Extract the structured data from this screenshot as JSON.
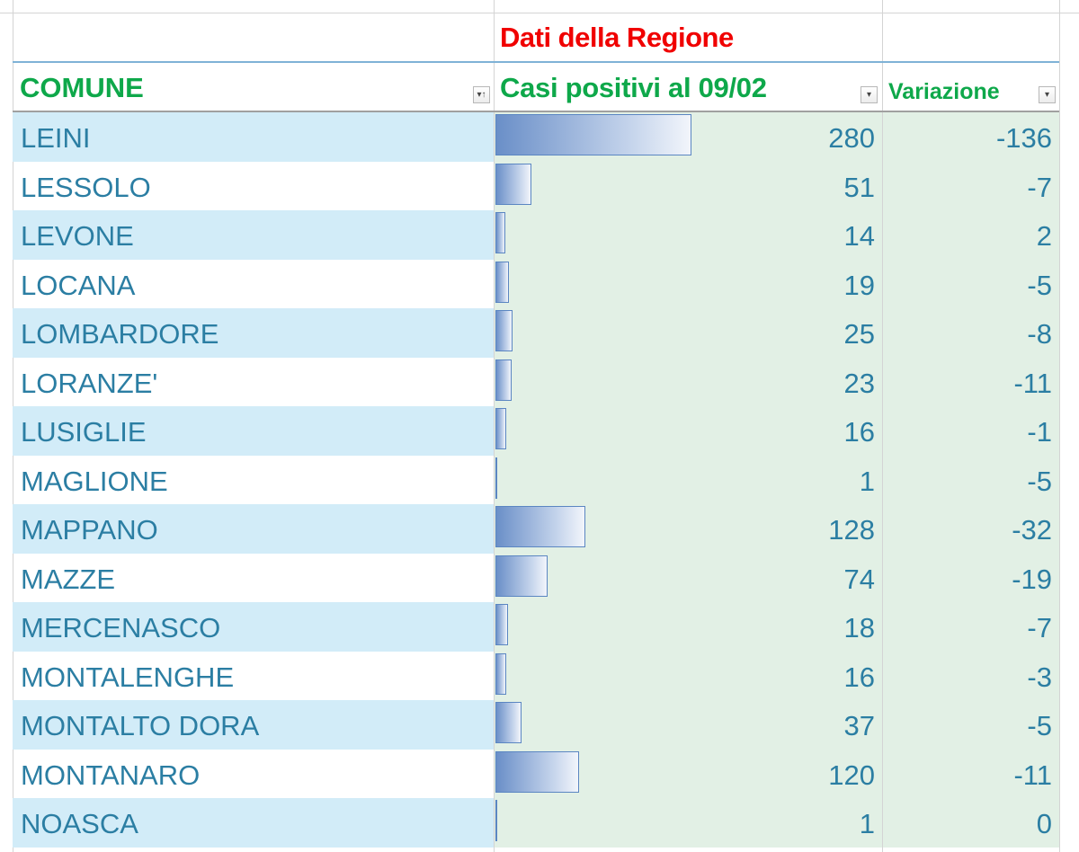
{
  "sheet": {
    "group_title": "Dati della Regione",
    "columns": [
      {
        "label": "COMUNE",
        "filter_icon": "sort-filter-icon"
      },
      {
        "label": "Casi positivi al 09/02",
        "filter_icon": "filter-dropdown-icon"
      },
      {
        "label": "Variazione",
        "filter_icon": "filter-dropdown-icon"
      }
    ],
    "data_bar_max": 280,
    "colors": {
      "title": "#f00000",
      "header": "#0ea84a",
      "text": "#2b7ea3",
      "band_blue": "#d2ecf8",
      "band_green": "#e2f0e5",
      "data_bar": "#5b86c2"
    },
    "rows": [
      {
        "comune": "LEINI",
        "casi": 280,
        "variazione": -136
      },
      {
        "comune": "LESSOLO",
        "casi": 51,
        "variazione": -7
      },
      {
        "comune": "LEVONE",
        "casi": 14,
        "variazione": 2
      },
      {
        "comune": "LOCANA",
        "casi": 19,
        "variazione": -5
      },
      {
        "comune": "LOMBARDORE",
        "casi": 25,
        "variazione": -8
      },
      {
        "comune": "LORANZE'",
        "casi": 23,
        "variazione": -11
      },
      {
        "comune": "LUSIGLIE",
        "casi": 16,
        "variazione": -1
      },
      {
        "comune": "MAGLIONE",
        "casi": 1,
        "variazione": -5
      },
      {
        "comune": "MAPPANO",
        "casi": 128,
        "variazione": -32
      },
      {
        "comune": "MAZZE",
        "casi": 74,
        "variazione": -19
      },
      {
        "comune": "MERCENASCO",
        "casi": 18,
        "variazione": -7
      },
      {
        "comune": "MONTALENGHE",
        "casi": 16,
        "variazione": -3
      },
      {
        "comune": "MONTALTO DORA",
        "casi": 37,
        "variazione": -5
      },
      {
        "comune": "MONTANARO",
        "casi": 120,
        "variazione": -11
      },
      {
        "comune": "NOASCA",
        "casi": 1,
        "variazione": 0
      }
    ]
  }
}
